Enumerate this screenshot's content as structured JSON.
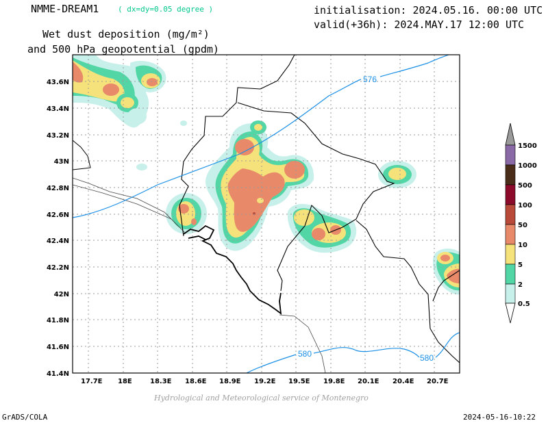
{
  "header": {
    "model_name": "NMME-DREAM1",
    "model_resolution": "( dx=dy=0.05 degree )",
    "initialisation": "initialisation: 2024.05.16. 00:00 UTC",
    "valid": "valid(+36h): 2024.MAY.17 12:00 UTC",
    "title_line1": "Wet dust deposition (mg/m²)",
    "title_line2": "and 500 hPa geopotential (gpdm)"
  },
  "map": {
    "lon_ticks": [
      "17.7E",
      "18E",
      "18.3E",
      "18.6E",
      "18.9E",
      "19.2E",
      "19.5E",
      "19.8E",
      "20.1E",
      "20.4E",
      "20.7E"
    ],
    "lat_ticks": [
      "43.6N",
      "43.4N",
      "43.2N",
      "43N",
      "42.8N",
      "42.6N",
      "42.4N",
      "42.2N",
      "42N",
      "41.8N",
      "41.6N",
      "41.4N"
    ],
    "contour_labels": [
      "576",
      "580",
      "580"
    ],
    "contour_color": "#1a8fe6"
  },
  "legend": {
    "levels": [
      "1500",
      "1000",
      "500",
      "100",
      "50",
      "10",
      "5",
      "2",
      "0.5"
    ],
    "colors": [
      "#8a6aa6",
      "#4a2e1a",
      "#8c0a2a",
      "#b94a3a",
      "#e88a6a",
      "#f5e27a",
      "#52d6a6",
      "#c8f0ea"
    ]
  },
  "footer": {
    "credit": "Hydrological and Meteorological service of Montenegro",
    "left": "GrADS/COLA",
    "right": "2024-05-16-10:22"
  }
}
